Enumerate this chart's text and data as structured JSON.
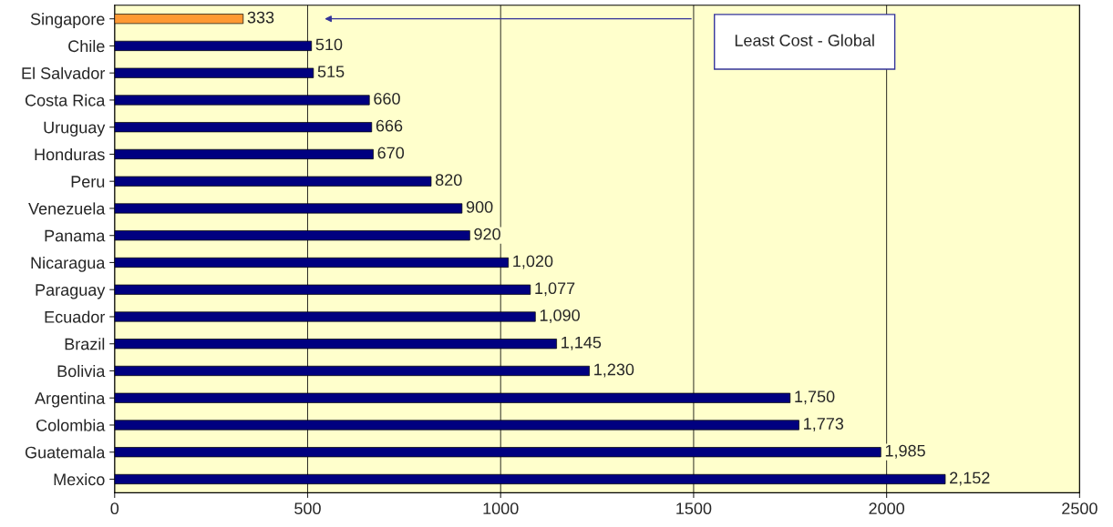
{
  "chart_data": {
    "type": "bar",
    "orientation": "horizontal",
    "categories": [
      "Singapore",
      "Chile",
      "El Salvador",
      "Costa Rica",
      "Uruguay",
      "Honduras",
      "Peru",
      "Venezuela",
      "Panama",
      "Nicaragua",
      "Paraguay",
      "Ecuador",
      "Brazil",
      "Bolivia",
      "Argentina",
      "Colombia",
      "Guatemala",
      "Mexico"
    ],
    "values": [
      333,
      510,
      515,
      660,
      666,
      670,
      820,
      900,
      920,
      1020,
      1077,
      1090,
      1145,
      1230,
      1750,
      1773,
      1985,
      2152
    ],
    "colors": [
      "#ff9933",
      "#000080",
      "#000080",
      "#000080",
      "#000080",
      "#000080",
      "#000080",
      "#000080",
      "#000080",
      "#000080",
      "#000080",
      "#000080",
      "#000080",
      "#000080",
      "#000080",
      "#000080",
      "#000080",
      "#000080"
    ],
    "value_labels": [
      "333",
      "510",
      "515",
      "660",
      "666",
      "670",
      "820",
      "900",
      "920",
      "1,020",
      "1,077",
      "1,090",
      "1,145",
      "1,230",
      "1,750",
      "1,773",
      "1,985",
      "2,152"
    ],
    "xlim": [
      0,
      2500
    ],
    "xticks": [
      0,
      500,
      1000,
      1500,
      2000,
      2500
    ],
    "grid": "x",
    "annotations": [
      "Least Cost - Global"
    ]
  }
}
